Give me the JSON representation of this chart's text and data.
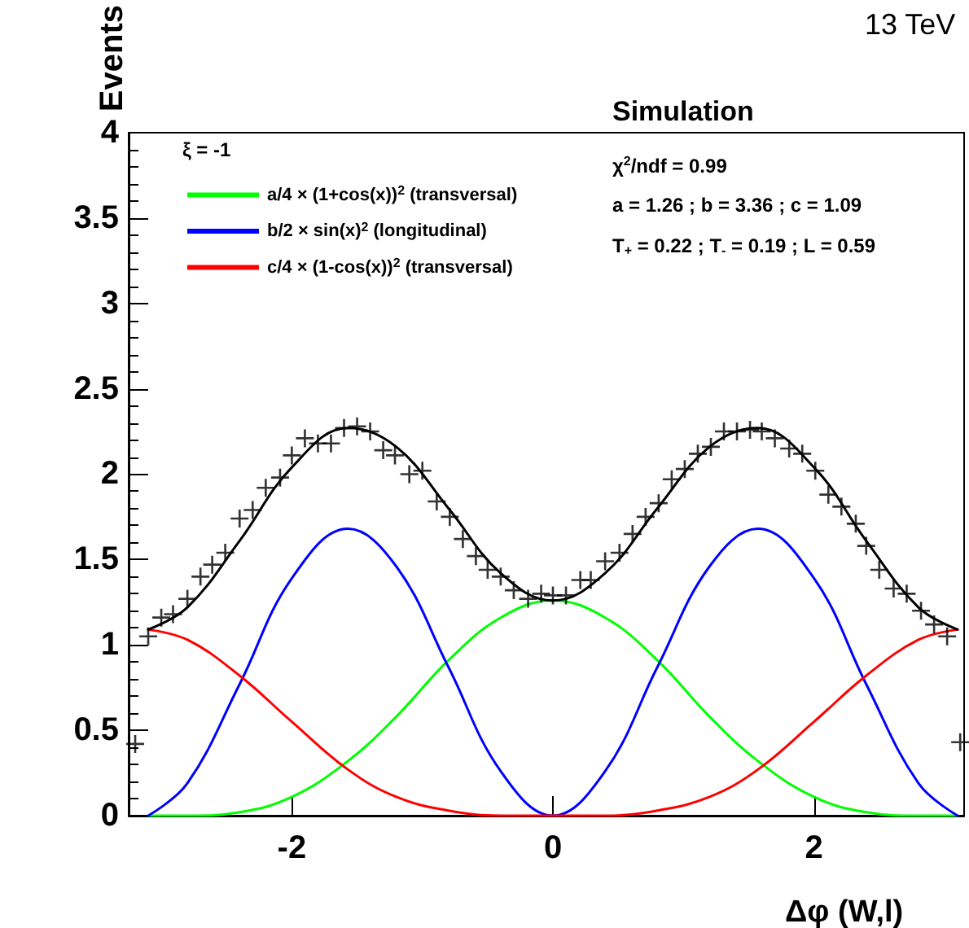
{
  "chart_data": {
    "type": "line",
    "xlabel": "Δφ (W,l)",
    "ylabel": "Events",
    "legend_title": "ξ = -1",
    "annotations": [
      "13 TeV",
      "Simulation",
      "χ$^{2}$/ndf = 0.99",
      "a = 1.26 ; b = 3.36 ; c = 1.09",
      "T$_{+}$ = 0.22 ; T$_{-}$ = 0.19 ; L = 0.59"
    ],
    "xlim": [
      -3.25,
      3.15
    ],
    "xticks": [
      -2,
      0,
      2
    ],
    "ylim": [
      0,
      4
    ],
    "yticks": [
      0,
      0.5,
      1,
      1.5,
      2,
      2.5,
      3,
      3.5,
      4
    ],
    "grid": false,
    "legend": "top left",
    "marker": "none",
    "line_style": "solid",
    "series": [
      {
        "name": "a/4 × (1+cos(x))$^{2}$ (transversal)",
        "color": "#00ff00",
        "x": [
          -3.1,
          -2.8,
          -2.4,
          -2.0,
          -1.57,
          -1.2,
          -0.8,
          -0.4,
          0,
          0.4,
          0.8,
          1.2,
          1.57,
          2.0,
          2.4,
          2.8,
          3.1
        ],
        "values": [
          0,
          0,
          0.02,
          0.11,
          0.32,
          0.58,
          0.91,
          1.16,
          1.26,
          1.16,
          0.91,
          0.58,
          0.32,
          0.11,
          0.02,
          0,
          0
        ]
      },
      {
        "name": "b/2 × sin(x)$^{2}$ (longitudinal)",
        "color": "#0000ff",
        "x": [
          -3.1,
          -2.8,
          -2.4,
          -2.0,
          -1.57,
          -1.2,
          -0.8,
          -0.4,
          0,
          0.4,
          0.8,
          1.2,
          1.57,
          2.0,
          2.4,
          2.8,
          3.1
        ],
        "values": [
          0,
          0.19,
          0.77,
          1.39,
          1.68,
          1.46,
          0.87,
          0.26,
          0,
          0.26,
          0.87,
          1.46,
          1.68,
          1.39,
          0.77,
          0.19,
          0
        ]
      },
      {
        "name": "c/4 × (1-cos(x))$^{2}$ (transversal)",
        "color": "#ff0000",
        "x": [
          -3.1,
          -2.8,
          -2.4,
          -2.0,
          -1.57,
          -1.2,
          -0.8,
          -0.4,
          0,
          0.4,
          0.8,
          1.2,
          1.57,
          2.0,
          2.4,
          2.8,
          3.1
        ],
        "values": [
          1.09,
          1.03,
          0.82,
          0.55,
          0.27,
          0.11,
          0.03,
          0,
          0,
          0,
          0.03,
          0.11,
          0.27,
          0.55,
          0.82,
          1.03,
          1.09
        ]
      },
      {
        "color": "#000000",
        "x": [
          -3.1,
          -2.8,
          -2.4,
          -2.0,
          -1.57,
          -1.2,
          -0.8,
          -0.4,
          0,
          0.4,
          0.8,
          1.2,
          1.57,
          2.0,
          2.4,
          2.8,
          3.1
        ],
        "values": [
          1.09,
          1.22,
          1.61,
          2.04,
          2.27,
          2.16,
          1.8,
          1.42,
          1.26,
          1.42,
          1.8,
          2.16,
          2.27,
          2.04,
          1.61,
          1.22,
          1.09
        ]
      },
      {
        "type": "scatter",
        "marker": "cross",
        "color": "#000000",
        "x": [
          -3.2,
          -3.1,
          -3.0,
          -2.91,
          -2.8,
          -2.7,
          -2.61,
          -2.51,
          -2.4,
          -2.3,
          -2.2,
          -2.09,
          -2.0,
          -1.9,
          -1.8,
          -1.7,
          -1.6,
          -1.5,
          -1.4,
          -1.3,
          -1.21,
          -1.1,
          -1.0,
          -0.89,
          -0.79,
          -0.69,
          -0.59,
          -0.5,
          -0.4,
          -0.3,
          -0.19,
          -0.09,
          0.0,
          0.1,
          0.21,
          0.29,
          0.4,
          0.51,
          0.61,
          0.71,
          0.81,
          0.91,
          1.01,
          1.11,
          1.21,
          1.31,
          1.41,
          1.51,
          1.6,
          1.7,
          1.81,
          1.91,
          2.01,
          2.11,
          2.21,
          2.32,
          2.4,
          2.5,
          2.61,
          2.71,
          2.82,
          2.92,
          3.02,
          3.12
        ],
        "values": [
          0.42,
          1.05,
          1.16,
          1.18,
          1.27,
          1.4,
          1.47,
          1.54,
          1.74,
          1.79,
          1.92,
          1.98,
          2.11,
          2.21,
          2.18,
          2.18,
          2.27,
          2.28,
          2.25,
          2.14,
          2.11,
          2.0,
          2.02,
          1.84,
          1.75,
          1.62,
          1.52,
          1.44,
          1.4,
          1.32,
          1.27,
          1.3,
          1.29,
          1.29,
          1.38,
          1.38,
          1.49,
          1.54,
          1.65,
          1.75,
          1.83,
          1.97,
          2.03,
          2.12,
          2.16,
          2.25,
          2.25,
          2.26,
          2.25,
          2.21,
          2.15,
          2.12,
          2.02,
          1.88,
          1.81,
          1.71,
          1.58,
          1.44,
          1.33,
          1.3,
          1.2,
          1.12,
          1.05,
          0.43
        ]
      }
    ]
  }
}
